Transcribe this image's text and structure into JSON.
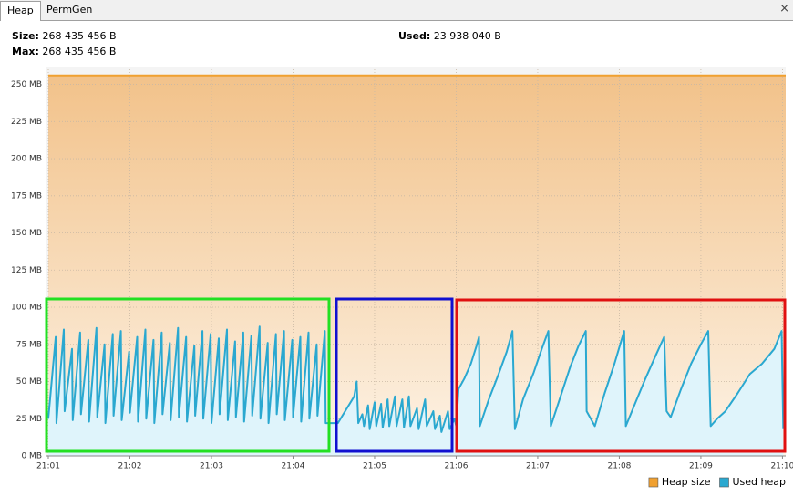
{
  "tabs": [
    "Heap",
    "PermGen"
  ],
  "close": "×",
  "stats": [
    {
      "label": "Size:",
      "value": "268 435 456 B"
    },
    {
      "label": "Max:",
      "value": "268 435 456 B"
    },
    {
      "label": "Used:",
      "value": "23 938 040 B"
    }
  ],
  "chart_data": {
    "type": "area",
    "xlim": [
      1,
      10.04
    ],
    "ylim": [
      0,
      262
    ],
    "xticks": [
      {
        "value": 1,
        "label": "21:01"
      },
      {
        "value": 2,
        "label": "21:02"
      },
      {
        "value": 3,
        "label": "21:03"
      },
      {
        "value": 4,
        "label": "21:04"
      },
      {
        "value": 5,
        "label": "21:05"
      },
      {
        "value": 6,
        "label": "21:06"
      },
      {
        "value": 7,
        "label": "21:07"
      },
      {
        "value": 8,
        "label": "21:08"
      },
      {
        "value": 9,
        "label": "21:09"
      },
      {
        "value": 10,
        "label": "21:10"
      }
    ],
    "yticks": [
      {
        "value": 0,
        "label": "0 MB"
      },
      {
        "value": 25,
        "label": "25 MB"
      },
      {
        "value": 50,
        "label": "50 MB"
      },
      {
        "value": 75,
        "label": "75 MB"
      },
      {
        "value": 100,
        "label": "100 MB"
      },
      {
        "value": 125,
        "label": "125 MB"
      },
      {
        "value": 150,
        "label": "150 MB"
      },
      {
        "value": 175,
        "label": "175 MB"
      },
      {
        "value": 200,
        "label": "200 MB"
      },
      {
        "value": 225,
        "label": "225 MB"
      },
      {
        "value": 250,
        "label": "250 MB"
      }
    ],
    "grid": true,
    "legend": "bottom-right",
    "series": [
      {
        "name": "Heap size",
        "color": "#f0a030",
        "fill": "url(#heapGrad)",
        "x": [
          1,
          10.04
        ],
        "values": [
          256,
          256
        ]
      },
      {
        "name": "Used heap",
        "color": "#2aa8d0",
        "fill": "#dff4fb",
        "x": [
          1.0,
          1.09,
          1.1,
          1.19,
          1.2,
          1.29,
          1.3,
          1.39,
          1.4,
          1.49,
          1.5,
          1.59,
          1.6,
          1.69,
          1.7,
          1.79,
          1.8,
          1.89,
          1.9,
          1.99,
          2.0,
          2.09,
          2.1,
          2.19,
          2.2,
          2.29,
          2.3,
          2.39,
          2.4,
          2.49,
          2.5,
          2.59,
          2.6,
          2.69,
          2.7,
          2.79,
          2.8,
          2.89,
          2.9,
          2.99,
          3.0,
          3.09,
          3.1,
          3.19,
          3.2,
          3.29,
          3.3,
          3.39,
          3.4,
          3.49,
          3.5,
          3.59,
          3.6,
          3.69,
          3.7,
          3.79,
          3.8,
          3.89,
          3.9,
          3.99,
          4.0,
          4.09,
          4.1,
          4.19,
          4.2,
          4.29,
          4.3,
          4.39,
          4.4,
          4.55,
          4.75,
          4.78,
          4.8,
          4.85,
          4.87,
          4.92,
          4.94,
          5.0,
          5.02,
          5.08,
          5.1,
          5.16,
          5.18,
          5.25,
          5.27,
          5.34,
          5.36,
          5.42,
          5.44,
          5.52,
          5.54,
          5.62,
          5.64,
          5.72,
          5.74,
          5.8,
          5.82,
          5.9,
          5.92,
          5.98,
          6.0,
          6.03,
          6.1,
          6.18,
          6.25,
          6.28,
          6.29,
          6.4,
          6.52,
          6.62,
          6.69,
          6.72,
          6.82,
          6.95,
          7.05,
          7.13,
          7.16,
          7.28,
          7.4,
          7.5,
          7.59,
          7.6,
          7.7,
          7.82,
          7.94,
          8.06,
          8.08,
          8.2,
          8.32,
          8.45,
          8.55,
          8.58,
          8.63,
          8.75,
          8.88,
          9.0,
          9.09,
          9.12,
          9.2,
          9.3,
          9.45,
          9.6,
          9.75,
          9.9,
          9.99,
          10.01
        ],
        "values": [
          25,
          80,
          22,
          85,
          30,
          72,
          24,
          83,
          28,
          78,
          23,
          86,
          26,
          75,
          22,
          82,
          27,
          84,
          24,
          70,
          29,
          80,
          23,
          85,
          25,
          78,
          22,
          83,
          28,
          76,
          24,
          86,
          26,
          80,
          23,
          74,
          27,
          84,
          25,
          82,
          22,
          79,
          28,
          85,
          24,
          77,
          26,
          83,
          23,
          81,
          27,
          87,
          25,
          76,
          22,
          82,
          28,
          84,
          24,
          78,
          26,
          80,
          23,
          83,
          25,
          75,
          27,
          84,
          22,
          22,
          40,
          50,
          22,
          28,
          20,
          34,
          18,
          36,
          20,
          35,
          19,
          38,
          20,
          40,
          20,
          38,
          19,
          40,
          20,
          32,
          18,
          38,
          20,
          30,
          18,
          27,
          16,
          30,
          18,
          25,
          20,
          45,
          52,
          62,
          74,
          80,
          20,
          38,
          55,
          70,
          84,
          18,
          38,
          56,
          72,
          84,
          20,
          40,
          60,
          74,
          84,
          30,
          20,
          42,
          62,
          84,
          20,
          36,
          52,
          68,
          80,
          30,
          26,
          44,
          62,
          75,
          84,
          20,
          25,
          30,
          42,
          55,
          62,
          72,
          84,
          18
        ]
      }
    ]
  }
}
